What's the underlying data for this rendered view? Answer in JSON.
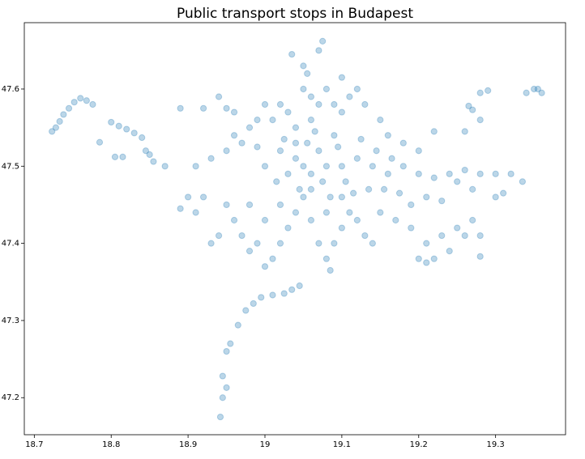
{
  "chart_data": {
    "type": "scatter",
    "title": "Public transport stops in Budapest",
    "color": "#1f77b4",
    "x": [
      18.723,
      18.728,
      18.733,
      18.738,
      18.745,
      18.752,
      18.76,
      18.768,
      18.776,
      18.785,
      18.8,
      18.81,
      18.82,
      18.83,
      18.84,
      18.845,
      18.805,
      18.815,
      18.85,
      18.855,
      18.87,
      18.942,
      18.945,
      18.95,
      18.945,
      18.955,
      18.95,
      18.965,
      18.975,
      18.985,
      18.995,
      19.01,
      19.025,
      19.035,
      19.045,
      19.34,
      19.35,
      19.355,
      19.36,
      19.29,
      19.28,
      19.265,
      19.27,
      19.28,
      19.28,
      19.22,
      19.26,
      19.075,
      19.07,
      19.035,
      19.05,
      19.055,
      19.1,
      19.0,
      19.02,
      19.04,
      19.05,
      19.06,
      19.07,
      19.08,
      19.1,
      19.12,
      19.14,
      19.16,
      19.18,
      19.2,
      19.22,
      19.24,
      19.26,
      19.28,
      19.3,
      19.32,
      19.335,
      19.31,
      19.3,
      19.27,
      19.25,
      19.05,
      19.04,
      19.03,
      19.02,
      19.01,
      19.0,
      19.06,
      19.07,
      19.08,
      19.085,
      19.09,
      19.1,
      19.11,
      19.12,
      19.13,
      19.14,
      19.15,
      19.17,
      19.19,
      19.21,
      19.22,
      19.23,
      19.25,
      19.27,
      19.26,
      18.98,
      18.96,
      18.94,
      18.93,
      18.95,
      18.92,
      18.9,
      18.89,
      18.91,
      18.97,
      18.99,
      19.0,
      19.02,
      18.98,
      19.04,
      19.03,
      19.02,
      19.06,
      19.07,
      19.08,
      19.09,
      19.1,
      19.11,
      19.12,
      19.13,
      19.15,
      19.16,
      19.18,
      19.2,
      19.05,
      19.06,
      18.98,
      18.96,
      18.94,
      18.95,
      18.97,
      18.95,
      18.93,
      18.91,
      18.99,
      18.96,
      18.89,
      18.92,
      18.99,
      19.0,
      19.01,
      19.03,
      19.045,
      19.055,
      19.065,
      19.075,
      19.085,
      19.095,
      19.105,
      19.115,
      19.125,
      19.135,
      19.145,
      19.155,
      19.165,
      19.175,
      19.19,
      19.21,
      19.23,
      19.015,
      19.025,
      19.08,
      19.09,
      19.06,
      19.1,
      19.04,
      19.2,
      19.21,
      19.28,
      19.24
    ],
    "values": [
      47.545,
      47.55,
      47.558,
      47.567,
      47.575,
      47.583,
      47.588,
      47.585,
      47.58,
      47.531,
      47.557,
      47.552,
      47.548,
      47.543,
      47.537,
      47.52,
      47.512,
      47.512,
      47.515,
      47.506,
      47.5,
      47.175,
      47.2,
      47.213,
      47.228,
      47.27,
      47.26,
      47.294,
      47.313,
      47.322,
      47.33,
      47.333,
      47.335,
      47.34,
      47.345,
      47.595,
      47.6,
      47.6,
      47.595,
      47.598,
      47.595,
      47.578,
      47.573,
      47.56,
      47.383,
      47.545,
      47.545,
      47.662,
      47.65,
      47.645,
      47.63,
      47.62,
      47.615,
      47.5,
      47.52,
      47.51,
      47.5,
      47.49,
      47.52,
      47.5,
      47.5,
      47.51,
      47.5,
      47.49,
      47.5,
      47.49,
      47.485,
      47.49,
      47.495,
      47.49,
      47.49,
      47.49,
      47.48,
      47.465,
      47.46,
      47.47,
      47.48,
      47.46,
      47.44,
      47.42,
      47.4,
      47.38,
      47.37,
      47.43,
      47.4,
      47.38,
      47.365,
      47.4,
      47.42,
      47.44,
      47.43,
      47.41,
      47.4,
      47.44,
      47.43,
      47.42,
      47.4,
      47.38,
      47.41,
      47.42,
      47.43,
      47.41,
      47.45,
      47.43,
      47.41,
      47.4,
      47.45,
      47.46,
      47.46,
      47.445,
      47.44,
      47.41,
      47.4,
      47.43,
      47.45,
      47.39,
      47.55,
      47.57,
      47.58,
      47.56,
      47.58,
      47.6,
      47.58,
      47.57,
      47.59,
      47.6,
      47.58,
      47.56,
      47.54,
      47.53,
      47.52,
      47.6,
      47.59,
      47.55,
      47.57,
      47.59,
      47.575,
      47.53,
      47.52,
      47.51,
      47.5,
      47.525,
      47.54,
      47.575,
      47.575,
      47.56,
      47.58,
      47.56,
      47.49,
      47.47,
      47.53,
      47.545,
      47.48,
      47.46,
      47.525,
      47.48,
      47.465,
      47.535,
      47.47,
      47.52,
      47.47,
      47.51,
      47.465,
      47.45,
      47.46,
      47.455,
      47.48,
      47.535,
      47.44,
      47.54,
      47.47,
      47.46,
      47.53,
      47.38,
      47.375,
      47.41,
      47.39
    ],
    "xlim": [
      18.687,
      19.391
    ],
    "ylim": [
      47.152,
      47.686
    ],
    "xticks": [
      18.7,
      18.8,
      18.9,
      19.0,
      19.1,
      19.2,
      19.3
    ],
    "yticks": [
      47.2,
      47.3,
      47.4,
      47.5,
      47.6
    ]
  }
}
